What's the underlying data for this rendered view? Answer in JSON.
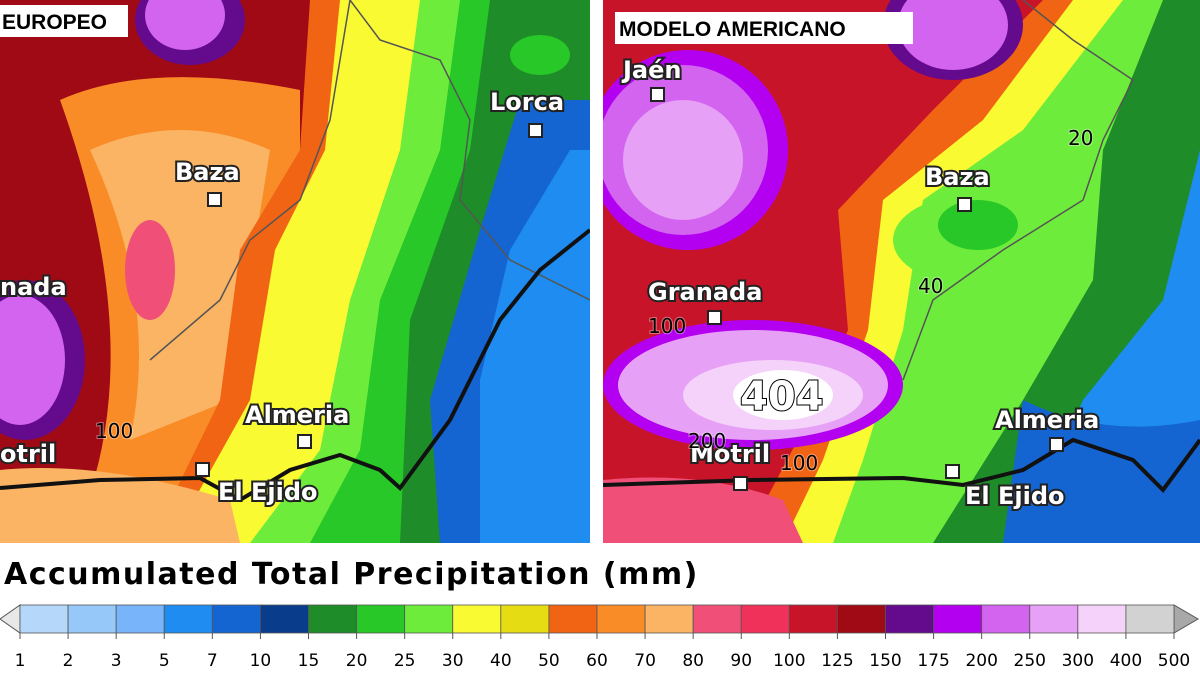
{
  "panels": [
    {
      "title": "EUROPEO",
      "cities": [
        "Baza",
        "Lorca",
        "Almeria",
        "El Ejido",
        "nada",
        "otril"
      ],
      "contour_labels": [
        "100"
      ]
    },
    {
      "title": "MODELO AMERICANO",
      "cities": [
        "Jaén",
        "Baza",
        "Granada",
        "Almeria",
        "Motril",
        "El Ejido"
      ],
      "contour_labels": [
        "20",
        "40",
        "100",
        "404",
        "200",
        "100"
      ]
    }
  ],
  "legend": {
    "title": "Accumulated Total Precipitation (mm)",
    "ticks": [
      1,
      2,
      3,
      5,
      7,
      10,
      15,
      20,
      25,
      30,
      40,
      50,
      60,
      70,
      80,
      90,
      100,
      125,
      150,
      175,
      200,
      250,
      300,
      400,
      500
    ],
    "colors": [
      "#b4d7fa",
      "#96c8fa",
      "#78b4fa",
      "#1e8cf0",
      "#1464d2",
      "#0a3c8c",
      "#1e8c28",
      "#28c828",
      "#6eec3c",
      "#fafa32",
      "#e6dc14",
      "#f06414",
      "#fa8c28",
      "#fab464",
      "#f05078",
      "#f0325a",
      "#c81428",
      "#a00a14",
      "#640a8c",
      "#b400f0",
      "#d264f0",
      "#e6a0f5",
      "#f5d2fa",
      "#d2d2d2"
    ],
    "under_color": "#e8e8e8",
    "over_color": "#a8a8a8"
  }
}
